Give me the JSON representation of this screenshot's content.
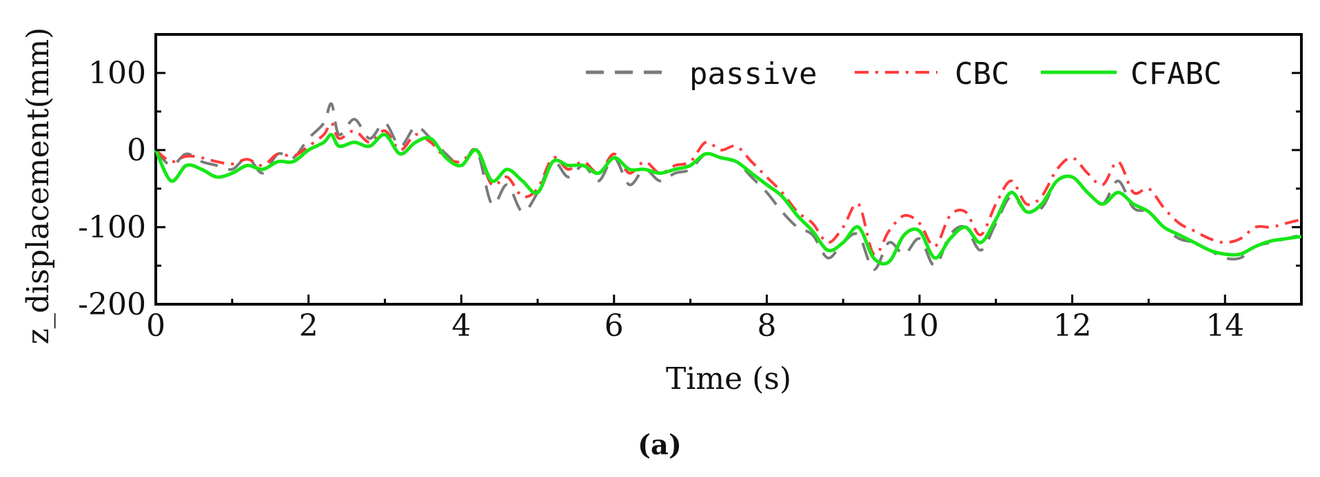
{
  "caption": "(a)",
  "colors": {
    "passive": "#7a7a7a",
    "CBC": "#ff3b3b",
    "CFABC": "#17e617"
  },
  "chart_data": {
    "type": "line",
    "title": "",
    "xlabel": "Time (s)",
    "ylabel": "z_displacement(mm)",
    "xlim": [
      0,
      15
    ],
    "ylim": [
      -200,
      150
    ],
    "x_ticks": [
      0,
      2,
      4,
      6,
      8,
      10,
      12,
      14
    ],
    "y_ticks": [
      -200,
      -100,
      0,
      100
    ],
    "grid": false,
    "legend_position": "top-right",
    "series": [
      {
        "name": "passive",
        "style": "dashed",
        "color": "#7a7a7a",
        "x": [
          0,
          0.2,
          0.4,
          0.6,
          0.8,
          1.0,
          1.2,
          1.4,
          1.6,
          1.8,
          2.0,
          2.2,
          2.3,
          2.4,
          2.6,
          2.8,
          3.0,
          3.2,
          3.4,
          3.6,
          3.8,
          4.0,
          4.2,
          4.4,
          4.6,
          4.8,
          5.0,
          5.2,
          5.4,
          5.6,
          5.8,
          6.0,
          6.2,
          6.4,
          6.6,
          6.8,
          7.0,
          7.2,
          7.4,
          7.6,
          7.8,
          8.0,
          8.2,
          8.4,
          8.6,
          8.8,
          9.0,
          9.2,
          9.4,
          9.6,
          9.8,
          10.0,
          10.2,
          10.4,
          10.6,
          10.8,
          11.0,
          11.2,
          11.4,
          11.6,
          11.8,
          12.0,
          12.2,
          12.4,
          12.6,
          12.8,
          13.0,
          13.2,
          13.4,
          13.6,
          13.8,
          14.0,
          14.2,
          14.4,
          14.6,
          14.8,
          15.0
        ],
        "y": [
          0,
          -20,
          -5,
          -15,
          -20,
          -25,
          -10,
          -30,
          -5,
          -10,
          15,
          35,
          60,
          20,
          40,
          15,
          35,
          5,
          30,
          15,
          -5,
          -20,
          0,
          -70,
          -45,
          -80,
          -55,
          -15,
          -35,
          -20,
          -40,
          -10,
          -45,
          -25,
          -40,
          -30,
          -25,
          -5,
          -10,
          -15,
          -35,
          -55,
          -80,
          -100,
          -110,
          -140,
          -120,
          -110,
          -155,
          -120,
          -135,
          -115,
          -150,
          -110,
          -100,
          -130,
          -95,
          -60,
          -80,
          -75,
          -40,
          -35,
          -55,
          -70,
          -40,
          -75,
          -80,
          -100,
          -115,
          -120,
          -130,
          -140,
          -140,
          -125,
          -120,
          -115,
          -110
        ]
      },
      {
        "name": "CBC",
        "style": "dashdot",
        "color": "#ff3b3b",
        "x": [
          0,
          0.2,
          0.4,
          0.6,
          0.8,
          1.0,
          1.2,
          1.4,
          1.6,
          1.8,
          2.0,
          2.2,
          2.3,
          2.4,
          2.6,
          2.8,
          3.0,
          3.2,
          3.4,
          3.6,
          3.8,
          4.0,
          4.2,
          4.4,
          4.6,
          4.8,
          5.0,
          5.2,
          5.4,
          5.6,
          5.8,
          6.0,
          6.2,
          6.4,
          6.6,
          6.8,
          7.0,
          7.2,
          7.4,
          7.6,
          7.8,
          8.0,
          8.2,
          8.4,
          8.6,
          8.8,
          9.0,
          9.2,
          9.4,
          9.6,
          9.8,
          10.0,
          10.2,
          10.4,
          10.6,
          10.8,
          11.0,
          11.2,
          11.4,
          11.6,
          11.8,
          12.0,
          12.2,
          12.4,
          12.6,
          12.8,
          13.0,
          13.2,
          13.4,
          13.6,
          13.8,
          14.0,
          14.2,
          14.4,
          14.6,
          14.8,
          15.0
        ],
        "y": [
          0,
          -15,
          -8,
          -10,
          -15,
          -18,
          -12,
          -20,
          -5,
          -8,
          5,
          20,
          35,
          15,
          25,
          10,
          25,
          0,
          20,
          10,
          -10,
          -15,
          0,
          -45,
          -35,
          -60,
          -50,
          -10,
          -25,
          -15,
          -30,
          -5,
          -30,
          -15,
          -30,
          -20,
          -15,
          10,
          0,
          5,
          -15,
          -35,
          -55,
          -80,
          -95,
          -120,
          -100,
          -70,
          -135,
          -105,
          -85,
          -95,
          -125,
          -85,
          -80,
          -110,
          -70,
          -40,
          -70,
          -60,
          -25,
          -10,
          -30,
          -45,
          -15,
          -55,
          -50,
          -75,
          -95,
          -105,
          -115,
          -120,
          -115,
          -100,
          -100,
          -95,
          -90
        ]
      },
      {
        "name": "CFABC",
        "style": "solid",
        "color": "#17e617",
        "x": [
          0,
          0.2,
          0.4,
          0.6,
          0.8,
          1.0,
          1.2,
          1.4,
          1.6,
          1.8,
          2.0,
          2.2,
          2.3,
          2.4,
          2.6,
          2.8,
          3.0,
          3.2,
          3.4,
          3.6,
          3.8,
          4.0,
          4.2,
          4.4,
          4.6,
          4.8,
          5.0,
          5.2,
          5.4,
          5.6,
          5.8,
          6.0,
          6.2,
          6.4,
          6.6,
          6.8,
          7.0,
          7.2,
          7.4,
          7.6,
          7.8,
          8.0,
          8.2,
          8.4,
          8.6,
          8.8,
          9.0,
          9.2,
          9.4,
          9.6,
          9.8,
          10.0,
          10.2,
          10.4,
          10.6,
          10.8,
          11.0,
          11.2,
          11.4,
          11.6,
          11.8,
          12.0,
          12.2,
          12.4,
          12.6,
          12.8,
          13.0,
          13.2,
          13.4,
          13.6,
          13.8,
          14.0,
          14.2,
          14.4,
          14.6,
          14.8,
          15.0
        ],
        "y": [
          0,
          -40,
          -20,
          -25,
          -35,
          -30,
          -20,
          -25,
          -15,
          -15,
          0,
          10,
          20,
          5,
          10,
          5,
          20,
          -5,
          10,
          15,
          -10,
          -20,
          0,
          -40,
          -25,
          -40,
          -55,
          -15,
          -20,
          -20,
          -30,
          -10,
          -25,
          -25,
          -30,
          -25,
          -20,
          -5,
          -10,
          -15,
          -30,
          -45,
          -60,
          -85,
          -105,
          -130,
          -120,
          -100,
          -140,
          -145,
          -110,
          -105,
          -140,
          -115,
          -100,
          -120,
          -90,
          -55,
          -80,
          -70,
          -40,
          -35,
          -55,
          -70,
          -55,
          -70,
          -80,
          -100,
          -110,
          -120,
          -130,
          -135,
          -135,
          -125,
          -118,
          -115,
          -112
        ]
      }
    ]
  }
}
